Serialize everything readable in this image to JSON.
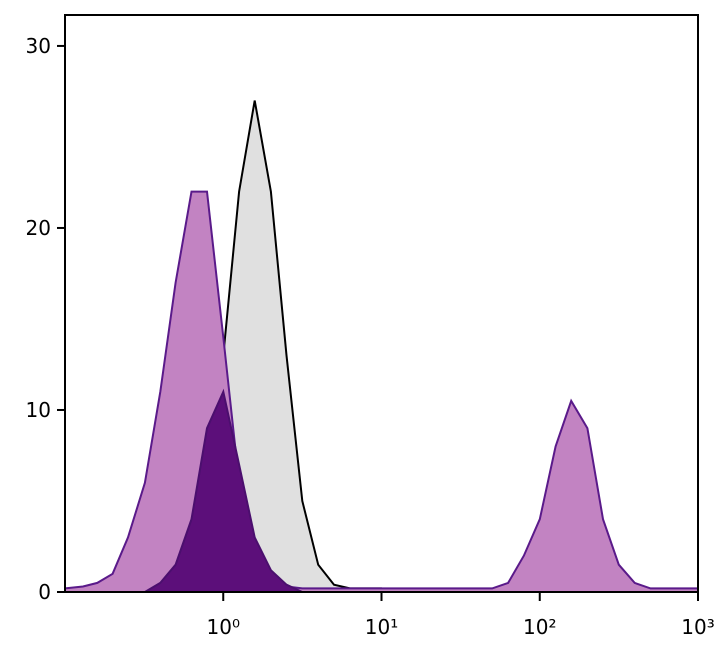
{
  "chart_data": {
    "type": "area",
    "xscale": "log",
    "x": [
      0.1,
      0.13,
      0.16,
      0.2,
      0.25,
      0.32,
      0.4,
      0.5,
      0.63,
      0.79,
      1,
      1.26,
      1.58,
      2,
      2.51,
      3.16,
      3.98,
      5.01,
      6.31,
      7.94,
      10,
      12.6,
      15.8,
      20,
      25.1,
      31.6,
      39.8,
      50.1,
      63.1,
      79.4,
      100,
      126,
      158,
      200,
      251,
      316,
      398,
      501,
      631,
      794,
      1000
    ],
    "series": [
      {
        "color": "#000000",
        "fill": "#e0e0e0",
        "values": [
          0,
          0,
          0,
          0,
          0,
          0,
          0,
          0.5,
          2,
          6,
          13,
          22,
          27,
          22,
          13,
          5,
          1.5,
          0.4,
          0.2,
          0.2,
          0.2,
          0,
          0,
          0,
          0,
          0,
          0,
          0,
          0,
          0,
          0,
          0,
          0,
          0,
          0,
          0,
          0,
          0,
          0,
          0,
          0
        ]
      },
      {
        "color": "#5a1a8a",
        "fill": "#c283c2",
        "values": [
          0.2,
          0.3,
          0.5,
          1,
          3,
          6,
          11,
          17,
          22,
          22,
          14,
          6,
          2,
          0.8,
          0.3,
          0.2,
          0.2,
          0.2,
          0.2,
          0.2,
          0.2,
          0.2,
          0.2,
          0.2,
          0.2,
          0.2,
          0.2,
          0.2,
          0.5,
          2,
          4,
          8,
          10.5,
          9,
          4,
          1.5,
          0.5,
          0.2,
          0.2,
          0.2,
          0.2
        ]
      },
      {
        "color": "#4b0f6e",
        "fill": "#5c0f7a",
        "values": [
          0,
          0,
          0,
          0,
          0,
          0,
          0.5,
          1.5,
          4,
          9,
          11,
          7,
          3,
          1.2,
          0.4,
          0,
          0,
          0,
          0,
          0,
          0,
          0,
          0,
          0,
          0,
          0,
          0,
          0,
          0,
          0,
          0,
          0,
          0,
          0,
          0,
          0,
          0,
          0,
          0,
          0,
          0
        ]
      }
    ],
    "xlim": [
      0.1,
      1000
    ],
    "ylim": [
      0,
      31.7
    ],
    "xticks": [
      {
        "value": 1,
        "label": "10⁰"
      },
      {
        "value": 10,
        "label": "10¹"
      },
      {
        "value": 100,
        "label": "10²"
      },
      {
        "value": 1000,
        "label": "10³"
      }
    ],
    "yticks": [
      0,
      10,
      20,
      30
    ]
  }
}
